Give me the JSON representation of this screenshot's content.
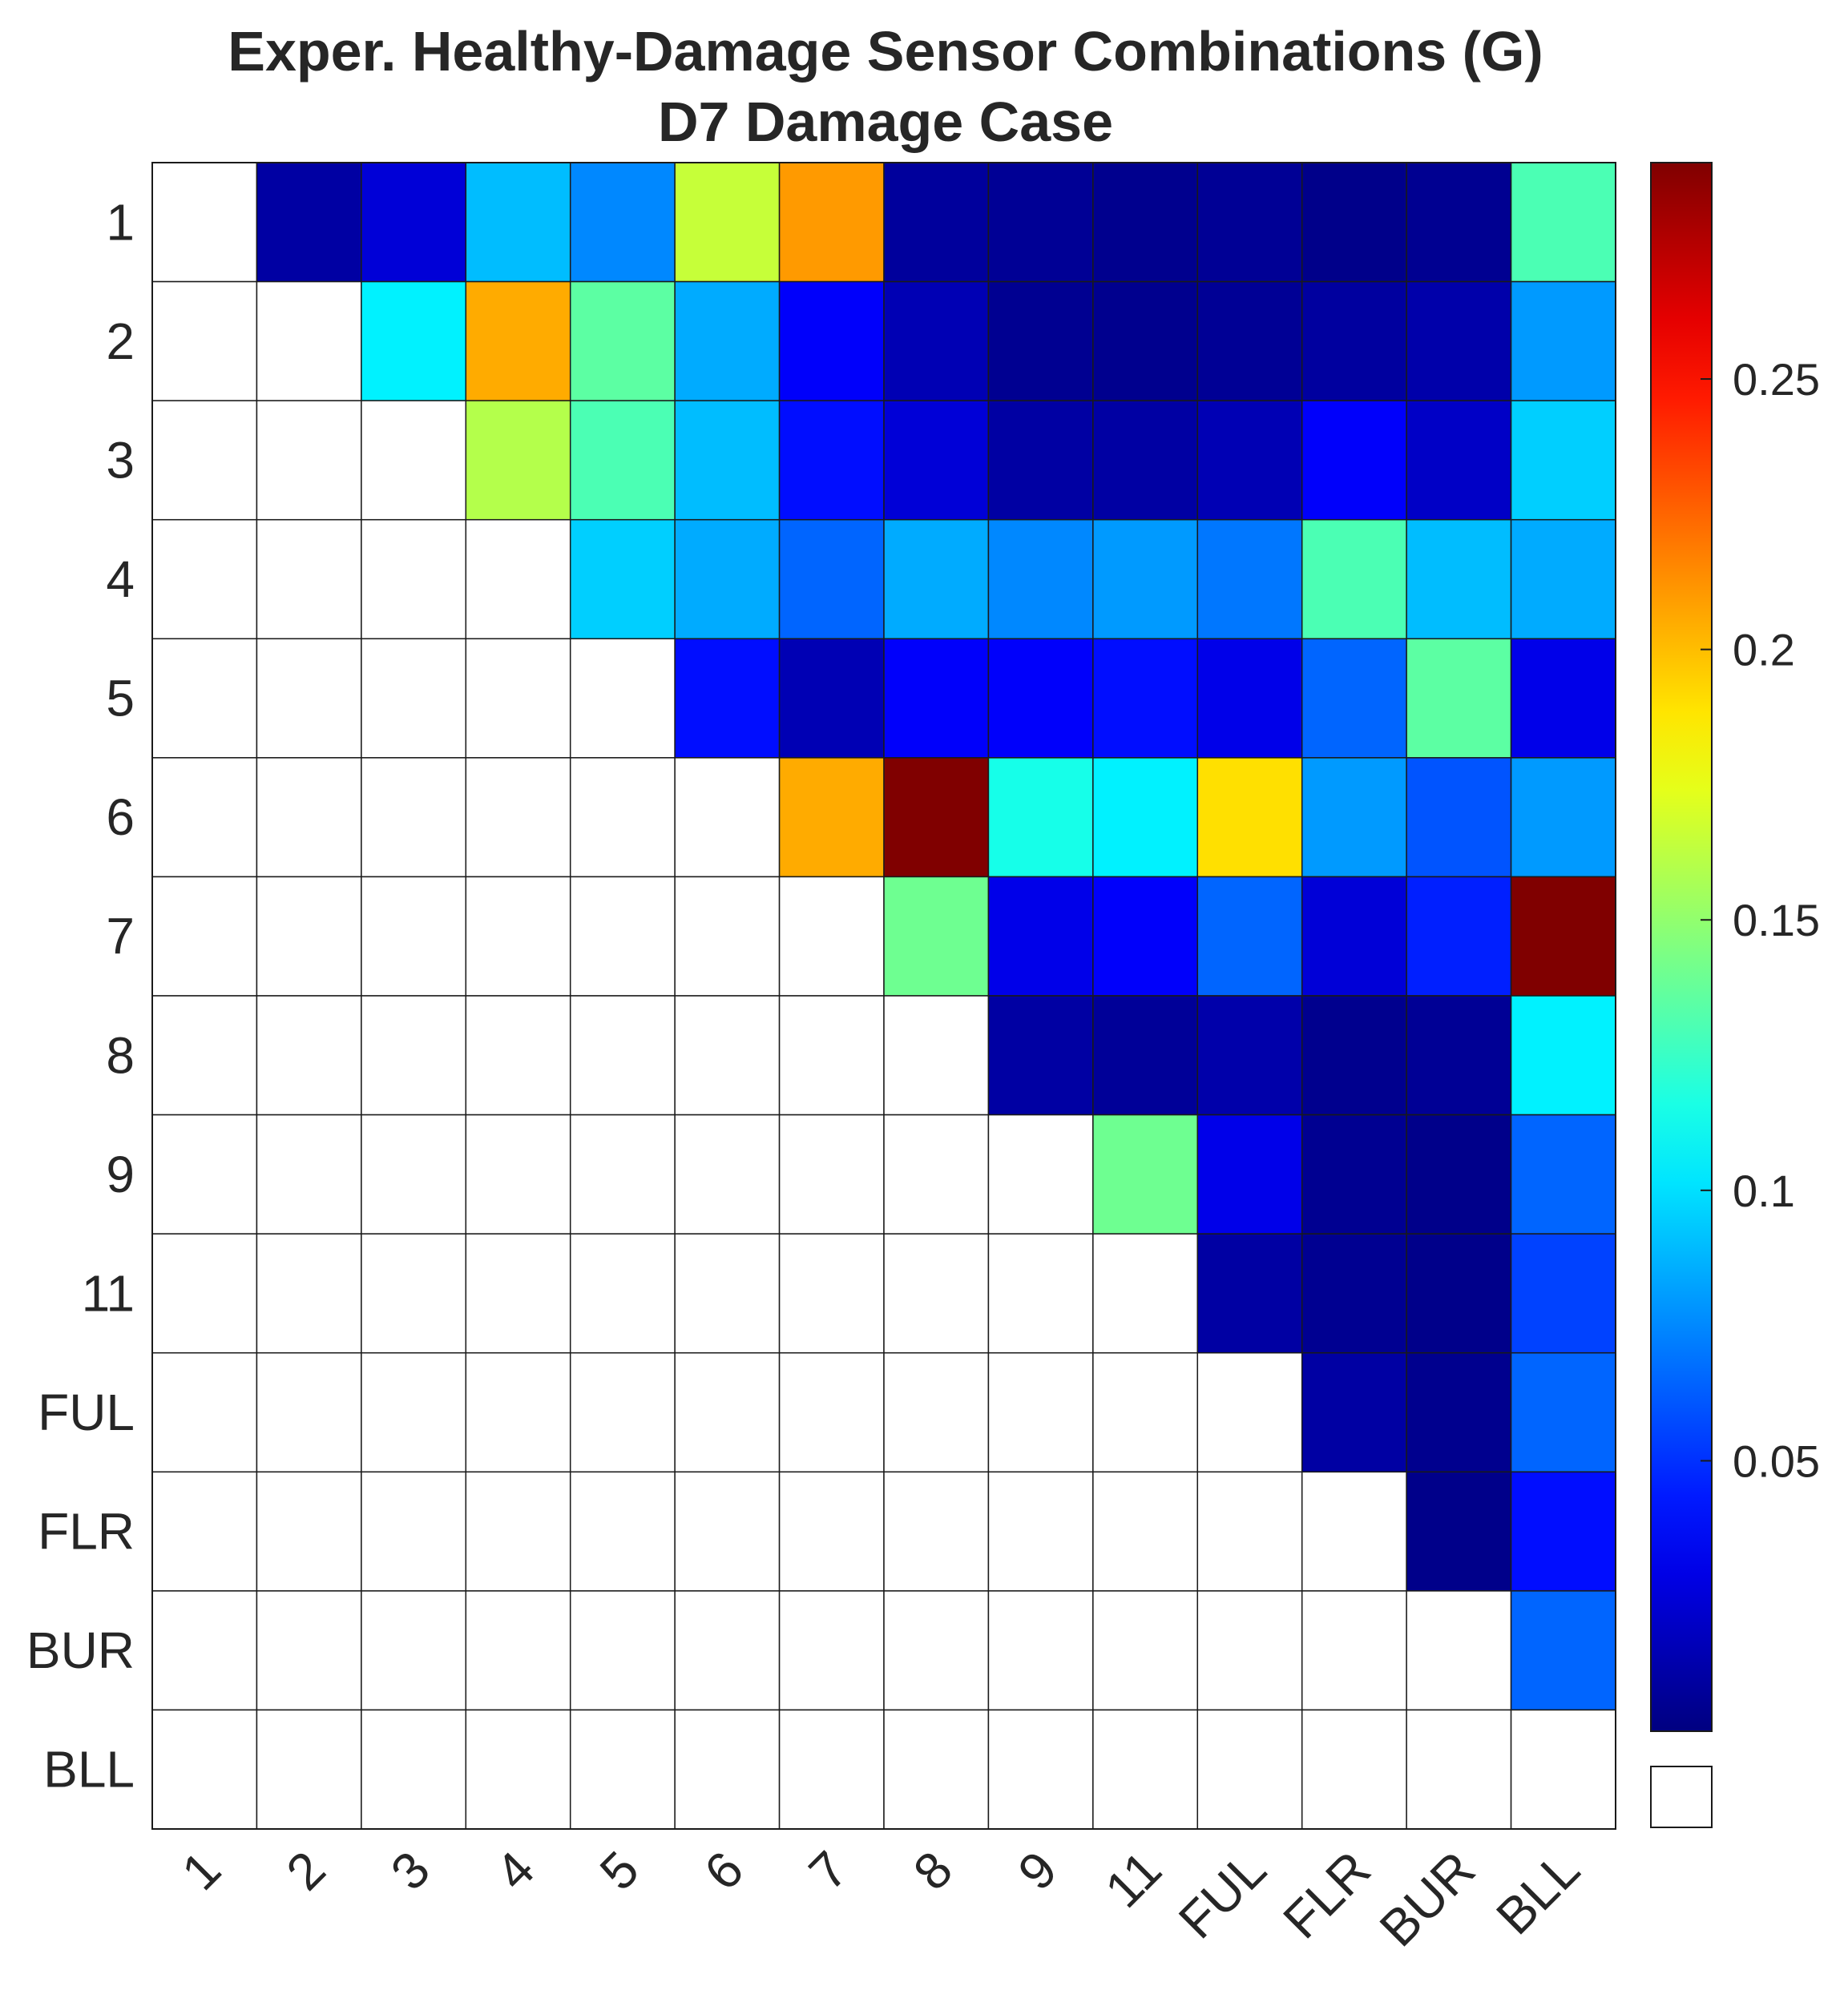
{
  "chart_data": {
    "type": "heatmap",
    "title": "Exper. Healthy-Damage Sensor Combinations (G)",
    "subtitle": "D7 Damage Case",
    "row_labels": [
      "1",
      "2",
      "3",
      "4",
      "5",
      "6",
      "7",
      "8",
      "9",
      "11",
      "FUL",
      "FLR",
      "BUR",
      "BLL"
    ],
    "col_labels": [
      "1",
      "2",
      "3",
      "4",
      "5",
      "6",
      "7",
      "8",
      "9",
      "11",
      "FUL",
      "FLR",
      "BUR",
      "BLL"
    ],
    "values": [
      [
        null,
        0.01,
        0.025,
        0.09,
        0.075,
        0.165,
        0.21,
        0.008,
        0.006,
        0.004,
        0.006,
        0.003,
        0.005,
        0.13
      ],
      [
        null,
        null,
        0.105,
        0.205,
        0.135,
        0.085,
        0.035,
        0.015,
        0.005,
        0.004,
        0.006,
        0.009,
        0.012,
        0.08
      ],
      [
        null,
        null,
        null,
        0.16,
        0.13,
        0.09,
        0.04,
        0.025,
        0.01,
        0.01,
        0.015,
        0.035,
        0.02,
        0.095
      ],
      [
        null,
        null,
        null,
        null,
        0.095,
        0.085,
        0.065,
        0.085,
        0.075,
        0.08,
        0.07,
        0.13,
        0.09,
        0.085
      ],
      [
        null,
        null,
        null,
        null,
        null,
        0.04,
        0.015,
        0.035,
        0.035,
        0.04,
        0.03,
        0.065,
        0.135,
        0.03
      ],
      [
        null,
        null,
        null,
        null,
        null,
        null,
        0.205,
        0.29,
        0.115,
        0.105,
        0.19,
        0.08,
        0.06,
        0.08
      ],
      [
        null,
        null,
        null,
        null,
        null,
        null,
        null,
        0.14,
        0.03,
        0.035,
        0.065,
        0.025,
        0.045,
        0.29
      ],
      [
        null,
        null,
        null,
        null,
        null,
        null,
        null,
        null,
        0.01,
        0.007,
        0.012,
        0.004,
        0.006,
        0.105
      ],
      [
        null,
        null,
        null,
        null,
        null,
        null,
        null,
        null,
        null,
        0.14,
        0.03,
        0.005,
        0.003,
        0.065
      ],
      [
        null,
        null,
        null,
        null,
        null,
        null,
        null,
        null,
        null,
        null,
        0.01,
        0.005,
        0.003,
        0.055
      ],
      [
        null,
        null,
        null,
        null,
        null,
        null,
        null,
        null,
        null,
        null,
        null,
        0.01,
        0.004,
        0.065
      ],
      [
        null,
        null,
        null,
        null,
        null,
        null,
        null,
        null,
        null,
        null,
        null,
        null,
        0.003,
        0.04
      ],
      [
        null,
        null,
        null,
        null,
        null,
        null,
        null,
        null,
        null,
        null,
        null,
        null,
        null,
        0.065
      ],
      [
        null,
        null,
        null,
        null,
        null,
        null,
        null,
        null,
        null,
        null,
        null,
        null,
        null,
        null
      ]
    ],
    "colorbar": {
      "colormap": "jet",
      "range": [
        0,
        0.29
      ],
      "ticks": [
        0.05,
        0.1,
        0.15,
        0.2,
        0.25
      ],
      "tick_labels": [
        "0.05",
        "0.1",
        "0.15",
        "0.2",
        "0.25"
      ],
      "empty_color": "#ffffff"
    },
    "grid": true,
    "cell_border_color": "#1a1a1a",
    "empty_cell_color": "#ffffff"
  }
}
